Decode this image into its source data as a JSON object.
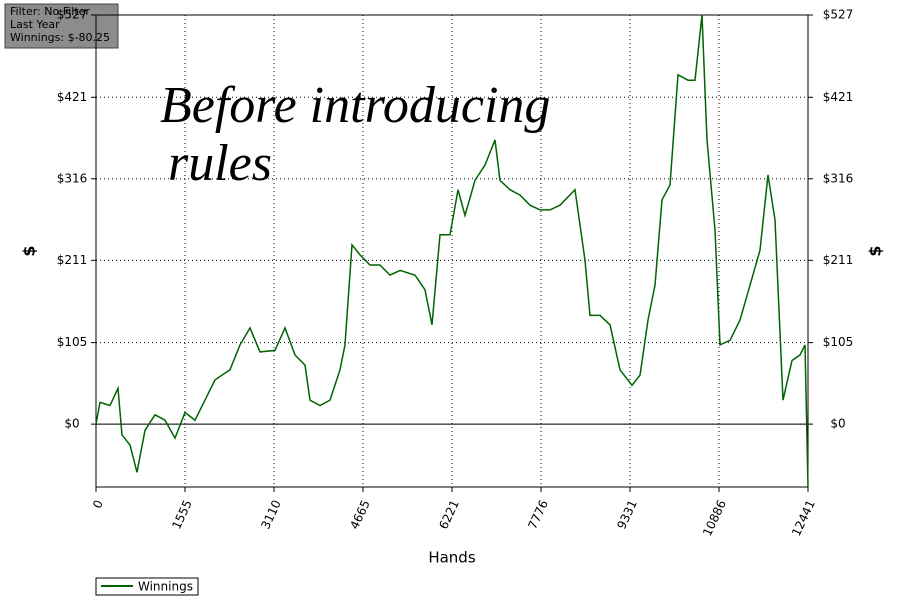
{
  "chart_data": {
    "type": "line",
    "info": [
      "Filter: No Filter",
      "Last Year",
      "Winnings: $-80.25"
    ],
    "annotation": [
      "Before introducing",
      "rules"
    ],
    "xlabel": "Hands",
    "ylabel": "$",
    "xlim": [
      0,
      12441
    ],
    "ylim": [
      -81,
      527
    ],
    "xticks": [
      0,
      1555,
      3110,
      4665,
      6221,
      7776,
      9331,
      10886,
      12441
    ],
    "yticks": [
      {
        "value": 0,
        "label": "$0"
      },
      {
        "value": 105,
        "label": "$105"
      },
      {
        "value": 211,
        "label": "$211"
      },
      {
        "value": 316,
        "label": "$316"
      },
      {
        "value": 421,
        "label": "$421"
      },
      {
        "value": 527,
        "label": "$527"
      }
    ],
    "grid": true,
    "x": [
      0,
      70,
      245,
      384,
      454,
      594,
      716,
      856,
      1031,
      1206,
      1380,
      1555,
      1730,
      1904,
      2079,
      2341,
      2516,
      2691,
      2865,
      3127,
      3302,
      3477,
      3652,
      3739,
      3914,
      4089,
      4263,
      4351,
      4473,
      4613,
      4788,
      4962,
      5137,
      5312,
      5574,
      5749,
      5871,
      6011,
      6186,
      6326,
      6448,
      6623,
      6798,
      6972,
      7060,
      7234,
      7409,
      7584,
      7759,
      7933,
      8108,
      8370,
      8545,
      8632,
      8807,
      8982,
      9156,
      9366,
      9506,
      9646,
      9768,
      9890,
      10030,
      10170,
      10345,
      10467,
      10589,
      10677,
      10816,
      10903,
      11078,
      11253,
      11428,
      11602,
      11742,
      11864,
      12004,
      12161,
      12301,
      12388,
      12441
    ],
    "series": [
      {
        "name": "Winnings",
        "color": "#006400",
        "values": [
          0,
          28,
          24,
          46,
          -14,
          -27,
          -62,
          -8,
          12,
          5,
          -18,
          15,
          5,
          31,
          57,
          70,
          102,
          124,
          93,
          95,
          124,
          89,
          76,
          31,
          24,
          31,
          70,
          102,
          231,
          218,
          205,
          205,
          192,
          198,
          192,
          173,
          128,
          244,
          244,
          302,
          269,
          314,
          334,
          366,
          314,
          302,
          295,
          282,
          276,
          276,
          282,
          302,
          211,
          140,
          140,
          128,
          70,
          50,
          63,
          134,
          179,
          289,
          308,
          450,
          443,
          443,
          527,
          366,
          250,
          102,
          108,
          134,
          179,
          224,
          321,
          263,
          31,
          82,
          89,
          102,
          -80.25
        ]
      }
    ]
  }
}
